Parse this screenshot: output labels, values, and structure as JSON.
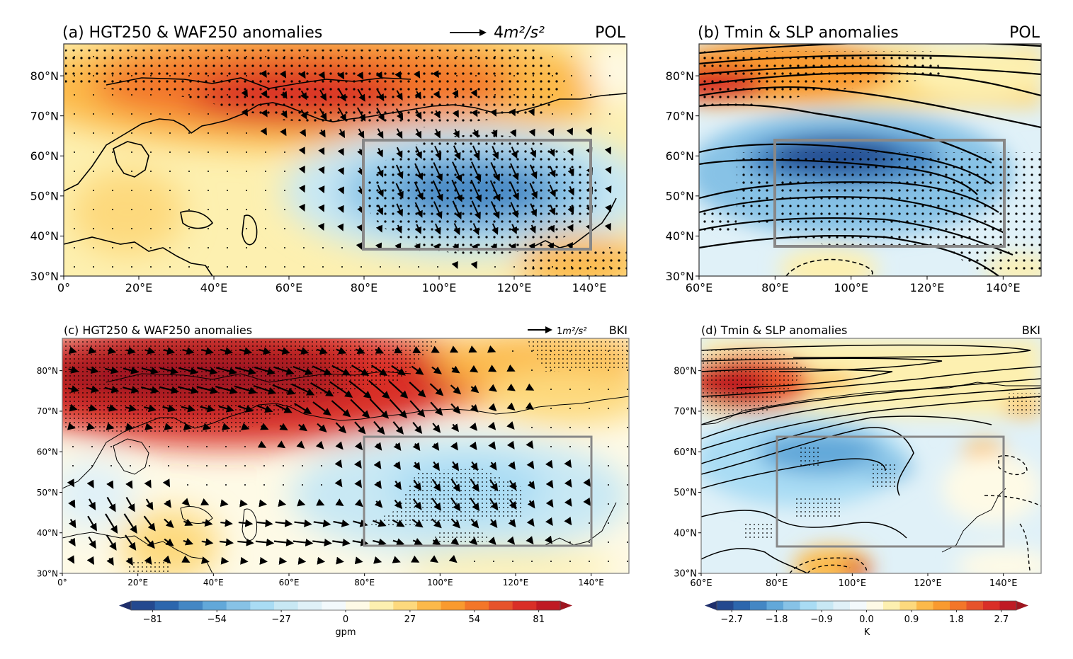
{
  "chart_data": [
    {
      "type": "heatmap",
      "panel": "a",
      "title": "(a) HGT250 & WAF250 anomalies",
      "label_right": "POL",
      "vector_key": {
        "prefix": "4",
        "unit_text": "m²/s²",
        "magnitude": 4
      },
      "xlim": [
        0,
        150
      ],
      "ylim": [
        30,
        90
      ],
      "xticks": [
        "0°",
        "20°E",
        "40°E",
        "60°E",
        "80°E",
        "100°E",
        "120°E",
        "140°E"
      ],
      "xtick_values": [
        0,
        20,
        40,
        60,
        80,
        100,
        120,
        140
      ],
      "yticks": [
        "30°N",
        "40°N",
        "50°N",
        "60°N",
        "70°N",
        "80°N"
      ],
      "ytick_values": [
        30,
        40,
        50,
        60,
        70,
        80
      ],
      "field": "HGT250 anomaly (gpm)",
      "features": [
        {
          "kind": "positive_center",
          "lon": 60,
          "lat": 74,
          "value": 60
        },
        {
          "kind": "negative_center",
          "lon": 110,
          "lat": 52,
          "value": -60
        },
        {
          "kind": "positive_center",
          "lon": 140,
          "lat": 33,
          "value": 30
        }
      ],
      "box": {
        "lon": [
          80,
          140
        ],
        "lat": [
          37,
          65
        ]
      }
    },
    {
      "type": "heatmap",
      "panel": "b",
      "title": "(b) Tmin & SLP anomalies",
      "label_right": "POL",
      "xlim": [
        60,
        150
      ],
      "ylim": [
        30,
        90
      ],
      "xticks": [
        "60°E",
        "80°E",
        "100°E",
        "120°E",
        "140°E"
      ],
      "xtick_values": [
        60,
        80,
        100,
        120,
        140
      ],
      "yticks": [
        "30°N",
        "40°N",
        "50°N",
        "60°N",
        "70°N",
        "80°N"
      ],
      "ytick_values": [
        30,
        40,
        50,
        60,
        70,
        80
      ],
      "field": "Tmin anomaly (K)",
      "features": [
        {
          "kind": "positive_center",
          "lon": 62,
          "lat": 77,
          "value": 2.4
        },
        {
          "kind": "negative_center",
          "lon": 100,
          "lat": 60,
          "value": -2.4
        }
      ],
      "box": {
        "lon": [
          80,
          140
        ],
        "lat": [
          37,
          65
        ]
      }
    },
    {
      "type": "heatmap",
      "panel": "c",
      "title": "(c) HGT250 & WAF250 anomalies",
      "label_right": "BKI",
      "vector_key": {
        "prefix": "1",
        "unit_text": "m²/s²",
        "magnitude": 1
      },
      "xlim": [
        0,
        150
      ],
      "ylim": [
        30,
        90
      ],
      "xticks": [
        "0°",
        "20°E",
        "40°E",
        "60°E",
        "80°E",
        "100°E",
        "120°E",
        "140°E"
      ],
      "xtick_values": [
        0,
        20,
        40,
        60,
        80,
        100,
        120,
        140
      ],
      "yticks": [
        "30°N",
        "40°N",
        "50°N",
        "60°N",
        "70°N",
        "80°N"
      ],
      "ytick_values": [
        30,
        40,
        50,
        60,
        70,
        80
      ],
      "field": "HGT250 anomaly (gpm)",
      "features": [
        {
          "kind": "positive_center",
          "lon": 30,
          "lat": 80,
          "value": 81
        },
        {
          "kind": "negative_center",
          "lon": 105,
          "lat": 52,
          "value": -25
        }
      ],
      "box": {
        "lon": [
          80,
          140
        ],
        "lat": [
          37,
          65
        ]
      }
    },
    {
      "type": "heatmap",
      "panel": "d",
      "title": "(d) Tmin & SLP anomalies",
      "label_right": "BKI",
      "xlim": [
        60,
        150
      ],
      "ylim": [
        30,
        90
      ],
      "xticks": [
        "60°E",
        "80°E",
        "100°E",
        "120°E",
        "140°E"
      ],
      "xtick_values": [
        60,
        80,
        100,
        120,
        140
      ],
      "yticks": [
        "30°N",
        "40°N",
        "50°N",
        "60°N",
        "70°N",
        "80°N"
      ],
      "ytick_values": [
        30,
        40,
        50,
        60,
        70,
        80
      ],
      "field": "Tmin anomaly (K)",
      "features": [
        {
          "kind": "positive_center",
          "lon": 65,
          "lat": 77,
          "value": 2.7
        },
        {
          "kind": "negative_center",
          "lon": 90,
          "lat": 59,
          "value": -1.5
        },
        {
          "kind": "positive_center",
          "lon": 100,
          "lat": 32,
          "value": 2.0
        },
        {
          "kind": "positive_center",
          "lon": 135,
          "lat": 61,
          "value": 0.9
        }
      ],
      "box": {
        "lon": [
          80,
          140
        ],
        "lat": [
          37,
          65
        ]
      }
    }
  ],
  "colorbars": [
    {
      "name": "gpm",
      "label": "gpm",
      "ticks": [
        "−81",
        "−54",
        "−27",
        "0",
        "27",
        "54",
        "81"
      ],
      "tick_values": [
        -81,
        -54,
        -27,
        0,
        27,
        54,
        81
      ],
      "range": [
        -90,
        90
      ],
      "extend": "both"
    },
    {
      "name": "K",
      "label": "K",
      "ticks": [
        "−2.7",
        "−1.8",
        "−0.9",
        "0.0",
        "0.9",
        "1.8",
        "2.7"
      ],
      "tick_values": [
        -2.7,
        -1.8,
        -0.9,
        0.0,
        0.9,
        1.8,
        2.7
      ],
      "range": [
        -3.0,
        3.0
      ],
      "extend": "both"
    }
  ],
  "palette": [
    "#1f2f6b",
    "#24498f",
    "#2c66ad",
    "#4487c4",
    "#62a8d9",
    "#87c2e6",
    "#a9dcf4",
    "#c8e8f4",
    "#e0f1f8",
    "#f3f9fc",
    "#fefae6",
    "#fdf0b0",
    "#fdd97d",
    "#fcb94a",
    "#f99a2f",
    "#f37629",
    "#e6532b",
    "#d92f27",
    "#bf1a24",
    "#9e1620"
  ]
}
